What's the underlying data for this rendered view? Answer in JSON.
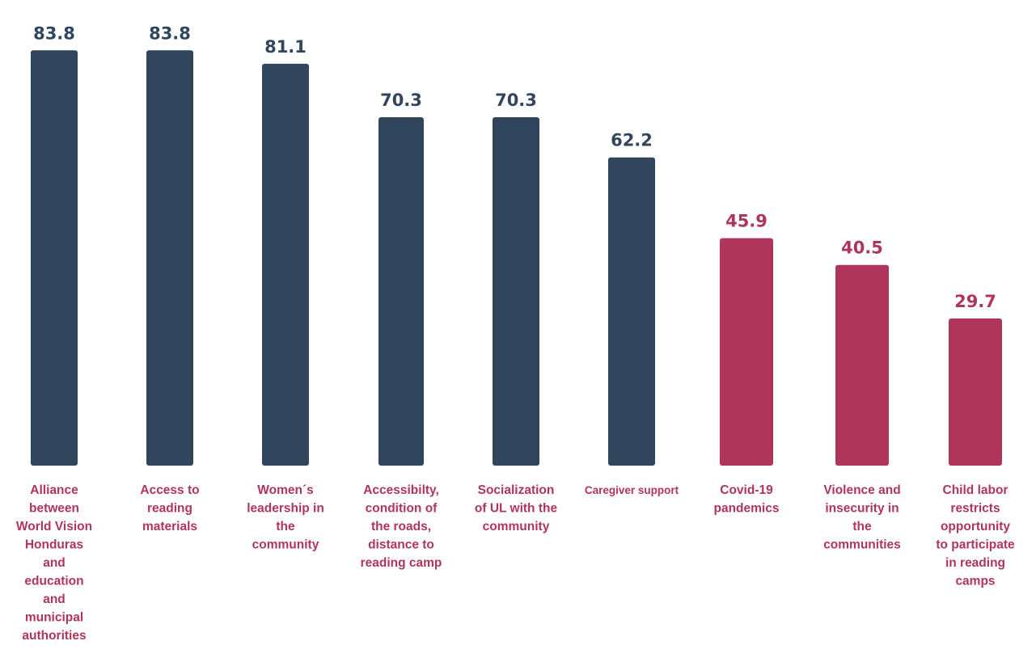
{
  "chart_data": {
    "type": "bar",
    "title": "",
    "xlabel": "",
    "ylabel": "",
    "ylim": [
      0,
      90
    ],
    "grid": false,
    "legend": "none",
    "categories": [
      "Alliance between World Vision Honduras and education and municipal authorities",
      "Access to reading materials",
      "Women´s leadership in the community",
      "Accessibilty, condition of the roads, distance to reading camp",
      "Socialization of UL with the community",
      "Caregiver support",
      "Covid-19 pandemics",
      "Violence and insecurity in the communities",
      "Child labor restricts opportunity to participate in reading camps"
    ],
    "category_lines": [
      [
        "Alliance",
        "between",
        "World Vision",
        "Honduras",
        "and",
        "education",
        "and",
        "municipal",
        "authorities"
      ],
      [
        "Access to",
        "reading",
        "materials"
      ],
      [
        "Women´s",
        "leadership in",
        "the",
        "community"
      ],
      [
        "Accessibilty,",
        "condition of",
        "the roads,",
        "distance to",
        "reading camp"
      ],
      [
        "Socialization",
        "of UL with the",
        "community"
      ],
      [
        "Caregiver support"
      ],
      [
        "Covid-19",
        "pandemics"
      ],
      [
        "Violence and",
        "insecurity in",
        "the",
        "communities"
      ],
      [
        "Child labor",
        "restricts",
        "opportunity",
        "to participate",
        "in reading",
        "camps"
      ]
    ],
    "values": [
      83.8,
      83.8,
      81.1,
      70.3,
      70.3,
      62.2,
      45.9,
      40.5,
      29.7
    ],
    "value_labels": [
      "83.8",
      "83.8",
      "81.1",
      "70.3",
      "70.3",
      "62.2",
      "45.9",
      "40.5",
      "29.7"
    ],
    "groups": [
      "facilitator",
      "facilitator",
      "facilitator",
      "facilitator",
      "facilitator",
      "facilitator",
      "barrier",
      "barrier",
      "barrier"
    ]
  },
  "colors": {
    "facilitator": "#31465c",
    "barrier": "#b0355a",
    "category_text": "#b0355a"
  }
}
